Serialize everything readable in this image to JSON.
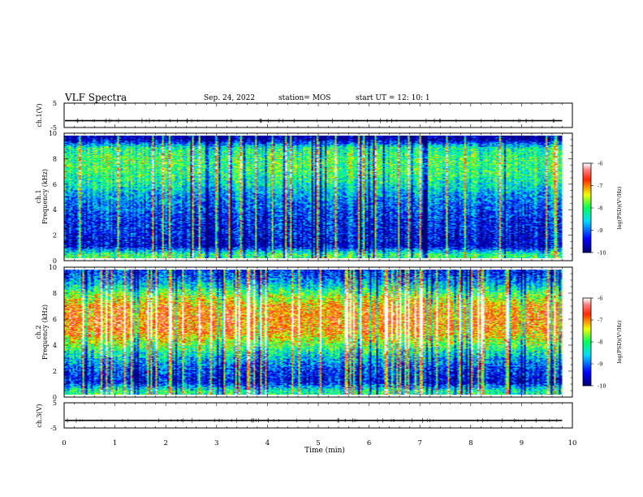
{
  "header": {
    "title": "VLF Spectra",
    "date": "Sep. 24, 2022",
    "station": "station= MOS",
    "start": "start  UT =   12: 10: 1"
  },
  "chart_data": [
    {
      "type": "line",
      "panel": "ch1-waveform",
      "ylabel": "ch.1(V)",
      "ylim": [
        -5,
        5
      ],
      "yticks": [
        "5",
        "-5"
      ],
      "xlim": [
        0,
        10
      ],
      "series": [
        {
          "values": [
            -2.2
          ]
        }
      ]
    },
    {
      "type": "heatmap",
      "panel": "ch1-spectrogram",
      "ylabel": [
        "ch.1",
        "Frequency (kHz)"
      ],
      "ylim": [
        0,
        10
      ],
      "yticks": [
        "0",
        "2",
        "4",
        "6",
        "8",
        "10"
      ],
      "xlim": [
        0,
        10
      ],
      "data_end_min": 9.8,
      "colorbar": {
        "label": "log(PSD)(V²/Hz)",
        "range": [
          -10,
          -6
        ],
        "ticks": [
          "-6",
          "-7",
          "-8",
          "-9",
          "-10"
        ]
      },
      "mean_level_by_frequency": [
        {
          "freq_khz": 0.3,
          "level": -8.0
        },
        {
          "freq_khz": 1.0,
          "level": -9.6
        },
        {
          "freq_khz": 2.0,
          "level": -9.4
        },
        {
          "freq_khz": 3.0,
          "level": -9.3
        },
        {
          "freq_khz": 4.0,
          "level": -9.1
        },
        {
          "freq_khz": 5.0,
          "level": -8.8
        },
        {
          "freq_khz": 6.0,
          "level": -8.3
        },
        {
          "freq_khz": 7.0,
          "level": -8.0
        },
        {
          "freq_khz": 8.0,
          "level": -7.9
        },
        {
          "freq_khz": 9.0,
          "level": -8.2
        },
        {
          "freq_khz": 9.7,
          "level": -9.8
        }
      ]
    },
    {
      "type": "heatmap",
      "panel": "ch2-spectrogram",
      "ylabel": [
        "ch.2",
        "Frequency (kHz)"
      ],
      "ylim": [
        0,
        10
      ],
      "yticks": [
        "0",
        "2",
        "4",
        "6",
        "8",
        "10"
      ],
      "xlim": [
        0,
        10
      ],
      "data_end_min": 9.8,
      "colorbar": {
        "label": "log(PSD)(V²/Hz)",
        "range": [
          -10,
          -6
        ],
        "ticks": [
          "-6",
          "-7",
          "-8",
          "-9",
          "-10"
        ]
      },
      "mean_level_by_frequency": [
        {
          "freq_khz": 0.3,
          "level": -8.2
        },
        {
          "freq_khz": 1.0,
          "level": -9.5
        },
        {
          "freq_khz": 2.0,
          "level": -9.2
        },
        {
          "freq_khz": 3.0,
          "level": -8.6
        },
        {
          "freq_khz": 4.0,
          "level": -7.8
        },
        {
          "freq_khz": 5.0,
          "level": -7.0
        },
        {
          "freq_khz": 6.0,
          "level": -6.9
        },
        {
          "freq_khz": 7.0,
          "level": -7.0
        },
        {
          "freq_khz": 8.0,
          "level": -7.8
        },
        {
          "freq_khz": 9.0,
          "level": -8.8
        },
        {
          "freq_khz": 9.8,
          "level": -9.3
        }
      ]
    },
    {
      "type": "line",
      "panel": "ch3-waveform",
      "ylabel": "ch.3(V)",
      "ylim": [
        -5,
        5
      ],
      "yticks": [
        "5",
        "-5"
      ],
      "xlim": [
        0,
        10
      ],
      "series": [
        {
          "values": [
            -2.0
          ]
        }
      ]
    }
  ],
  "xaxis": {
    "label": "Time  (min)",
    "ticks": [
      "0",
      "1",
      "2",
      "3",
      "4",
      "5",
      "6",
      "7",
      "8",
      "9",
      "10"
    ],
    "range": [
      0,
      10
    ]
  },
  "colors": [
    "#000080",
    "#0000ff",
    "#00d8ff",
    "#00ff60",
    "#ffff00",
    "#ff2000",
    "#ffffff"
  ]
}
